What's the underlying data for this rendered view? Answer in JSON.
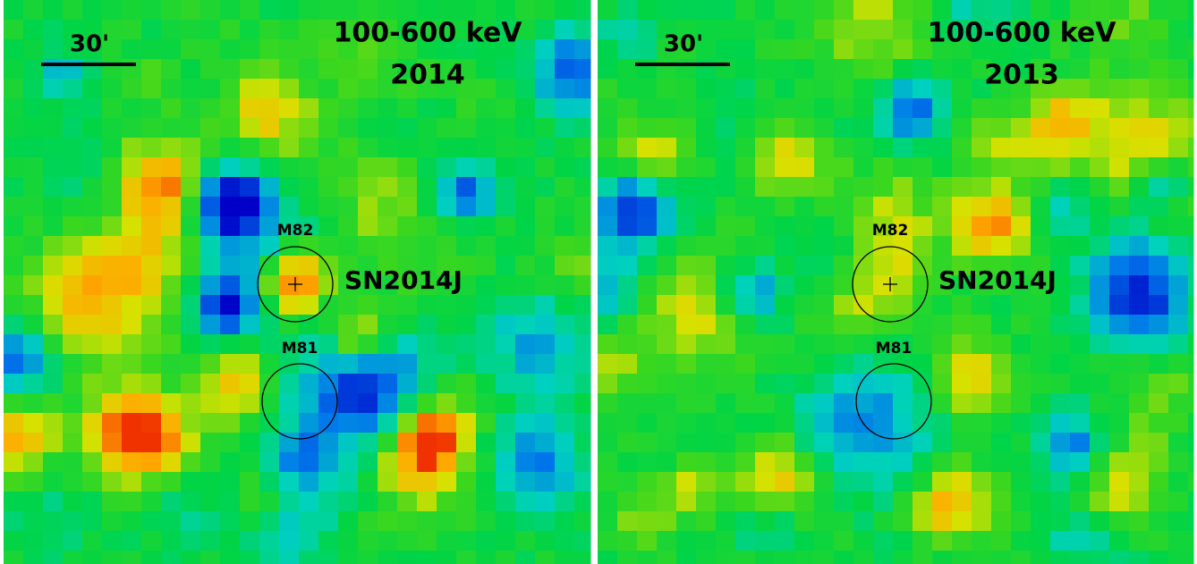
{
  "panels": [
    {
      "scale": "30'",
      "band": "100-600 keV",
      "year": "2014",
      "m82": "M82",
      "source": "SN2014J",
      "m81": "M81"
    },
    {
      "scale": "30'",
      "band": "100-600 keV",
      "year": "2013",
      "m82": "M82",
      "source": "SN2014J",
      "m81": "M81"
    }
  ]
}
